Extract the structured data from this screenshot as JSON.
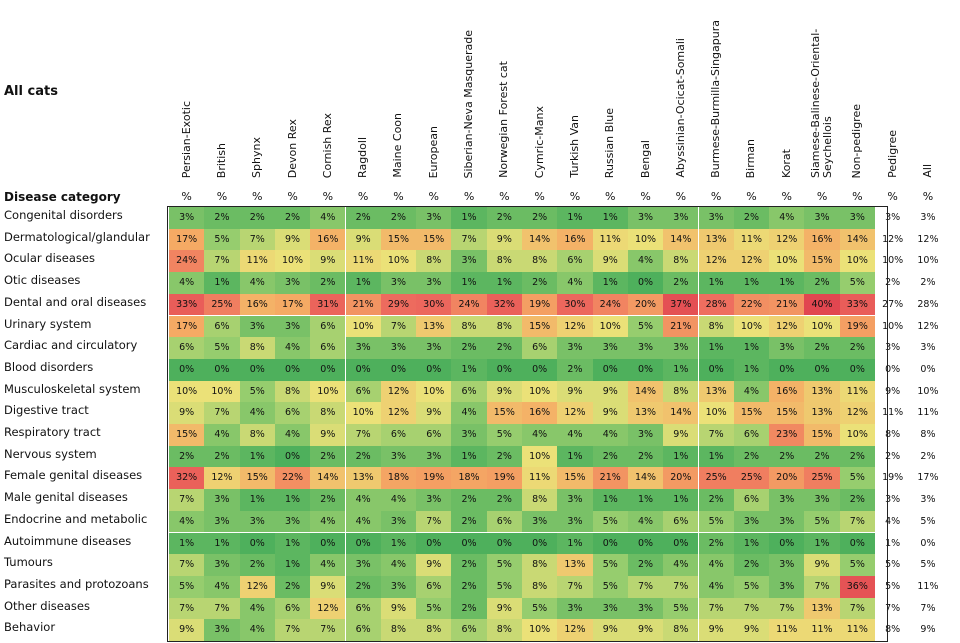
{
  "title": "All cats",
  "row_header": "Disease category",
  "unit_symbol": "%",
  "chart_data": {
    "type": "heatmap",
    "columns": [
      "Persian-Exotic",
      "British",
      "Sphynx",
      "Devon Rex",
      "Cornish Rex",
      "Ragdoll",
      "Maine Coon",
      "European",
      "Siberian-Neva Masquerade",
      "Norwegian Forest cat",
      "Cymric-Manx",
      "Turkish Van",
      "Russian Blue",
      "Bengal",
      "Abyssinian-Ocicat-Somali",
      "Burmese-Burmilla-Singapura",
      "Birman",
      "Korat",
      "Siamese-Balinese-Oriental-Seychellois",
      "Non-pedigree",
      "Pedigree",
      "All"
    ],
    "rows": [
      "Congenital disorders",
      "Dermatological/glandular",
      "Ocular diseases",
      "Otic diseases",
      "Dental and oral diseases",
      "Urinary system",
      "Cardiac and circulatory",
      "Blood disorders",
      "Musculoskeletal system",
      "Digestive tract",
      "Respiratory tract",
      "Nervous system",
      "Female genital diseases",
      "Male genital diseases",
      "Endocrine and metabolic",
      "Autoimmune diseases",
      "Tumours",
      "Parasites and protozoans",
      "Other diseases",
      "Behavior"
    ],
    "values": [
      [
        3,
        2,
        2,
        2,
        4,
        2,
        2,
        3,
        1,
        2,
        2,
        1,
        1,
        3,
        3,
        3,
        2,
        4,
        3,
        3,
        3,
        3
      ],
      [
        17,
        5,
        7,
        9,
        16,
        9,
        15,
        15,
        7,
        9,
        14,
        16,
        11,
        10,
        14,
        13,
        11,
        12,
        16,
        14,
        12,
        12
      ],
      [
        24,
        7,
        11,
        10,
        9,
        11,
        10,
        8,
        3,
        8,
        8,
        6,
        9,
        4,
        8,
        12,
        12,
        10,
        15,
        10,
        10,
        10
      ],
      [
        4,
        1,
        4,
        3,
        2,
        1,
        3,
        3,
        1,
        1,
        2,
        4,
        1,
        0,
        2,
        1,
        1,
        1,
        2,
        5,
        2,
        2
      ],
      [
        33,
        25,
        16,
        17,
        31,
        21,
        29,
        30,
        24,
        32,
        19,
        30,
        24,
        20,
        37,
        28,
        22,
        21,
        40,
        33,
        27,
        28
      ],
      [
        17,
        6,
        3,
        3,
        6,
        10,
        7,
        13,
        8,
        8,
        15,
        12,
        10,
        5,
        21,
        8,
        10,
        12,
        10,
        19,
        10,
        12
      ],
      [
        6,
        5,
        8,
        4,
        6,
        3,
        3,
        3,
        2,
        2,
        6,
        3,
        3,
        3,
        3,
        1,
        1,
        3,
        2,
        2,
        3,
        3
      ],
      [
        0,
        0,
        0,
        0,
        0,
        0,
        0,
        0,
        1,
        0,
        0,
        2,
        0,
        0,
        1,
        0,
        1,
        0,
        0,
        0,
        0,
        0
      ],
      [
        10,
        10,
        5,
        8,
        10,
        6,
        12,
        10,
        6,
        9,
        10,
        9,
        9,
        14,
        8,
        13,
        4,
        16,
        13,
        11,
        9,
        10
      ],
      [
        9,
        7,
        4,
        6,
        8,
        10,
        12,
        9,
        4,
        15,
        16,
        12,
        9,
        13,
        14,
        10,
        15,
        15,
        13,
        12,
        11,
        11
      ],
      [
        15,
        4,
        8,
        4,
        9,
        7,
        6,
        6,
        3,
        5,
        4,
        4,
        4,
        3,
        9,
        7,
        6,
        23,
        15,
        10,
        8,
        8
      ],
      [
        2,
        2,
        1,
        0,
        2,
        2,
        3,
        3,
        1,
        2,
        10,
        1,
        2,
        2,
        1,
        1,
        2,
        2,
        2,
        2,
        2,
        2
      ],
      [
        32,
        12,
        15,
        22,
        14,
        13,
        18,
        19,
        18,
        19,
        11,
        15,
        21,
        14,
        20,
        25,
        25,
        20,
        25,
        5,
        19,
        17
      ],
      [
        7,
        3,
        1,
        1,
        2,
        4,
        4,
        3,
        2,
        2,
        8,
        3,
        1,
        1,
        1,
        2,
        6,
        3,
        3,
        2,
        3,
        3
      ],
      [
        4,
        3,
        3,
        3,
        4,
        4,
        3,
        7,
        2,
        6,
        3,
        3,
        5,
        4,
        6,
        5,
        3,
        3,
        5,
        7,
        4,
        5
      ],
      [
        1,
        1,
        0,
        1,
        0,
        0,
        1,
        0,
        0,
        0,
        0,
        1,
        0,
        0,
        0,
        2,
        1,
        0,
        1,
        0,
        1,
        0
      ],
      [
        7,
        3,
        2,
        1,
        4,
        3,
        4,
        9,
        2,
        5,
        8,
        13,
        5,
        2,
        4,
        4,
        2,
        3,
        9,
        5,
        5,
        5
      ],
      [
        5,
        4,
        12,
        2,
        9,
        2,
        3,
        6,
        2,
        5,
        8,
        7,
        5,
        7,
        7,
        4,
        5,
        3,
        7,
        36,
        5,
        11
      ],
      [
        7,
        7,
        4,
        6,
        12,
        6,
        9,
        5,
        2,
        9,
        5,
        3,
        3,
        3,
        5,
        7,
        7,
        7,
        13,
        7,
        7,
        7
      ],
      [
        9,
        3,
        4,
        7,
        7,
        6,
        8,
        8,
        6,
        8,
        10,
        12,
        9,
        9,
        8,
        9,
        9,
        11,
        11,
        11,
        8,
        9
      ]
    ]
  }
}
